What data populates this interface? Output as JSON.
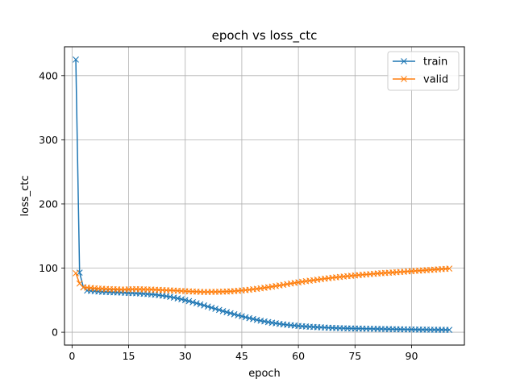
{
  "chart_data": {
    "type": "line",
    "title": "epoch vs loss_ctc",
    "xlabel": "epoch",
    "ylabel": "loss_ctc",
    "xlim": [
      -2,
      104
    ],
    "ylim": [
      -20,
      445
    ],
    "xticks": [
      0,
      15,
      30,
      45,
      60,
      75,
      90
    ],
    "yticks": [
      0,
      100,
      200,
      300,
      400
    ],
    "grid": true,
    "legend_position": "top-right",
    "marker": "x",
    "x": [
      1,
      2,
      3,
      4,
      5,
      6,
      7,
      8,
      9,
      10,
      11,
      12,
      13,
      14,
      15,
      16,
      17,
      18,
      19,
      20,
      21,
      22,
      23,
      24,
      25,
      26,
      27,
      28,
      29,
      30,
      31,
      32,
      33,
      34,
      35,
      36,
      37,
      38,
      39,
      40,
      41,
      42,
      43,
      44,
      45,
      46,
      47,
      48,
      49,
      50,
      51,
      52,
      53,
      54,
      55,
      56,
      57,
      58,
      59,
      60,
      61,
      62,
      63,
      64,
      65,
      66,
      67,
      68,
      69,
      70,
      71,
      72,
      73,
      74,
      75,
      76,
      77,
      78,
      79,
      80,
      81,
      82,
      83,
      84,
      85,
      86,
      87,
      88,
      89,
      90,
      91,
      92,
      93,
      94,
      95,
      96,
      97,
      98,
      99,
      100
    ],
    "series": [
      {
        "name": "train",
        "color": "#1f77b4",
        "values": [
          425.0,
          93.0,
          70.0,
          65.0,
          64.5,
          64.0,
          63.5,
          63.0,
          62.8,
          62.5,
          62.2,
          62.0,
          61.8,
          61.5,
          61.2,
          61.0,
          60.8,
          60.5,
          60.0,
          59.5,
          59.0,
          58.5,
          57.8,
          57.0,
          56.2,
          55.2,
          54.0,
          52.8,
          51.5,
          50.0,
          48.5,
          46.8,
          45.2,
          43.5,
          41.8,
          40.0,
          38.3,
          36.5,
          34.8,
          33.0,
          31.3,
          29.6,
          28.0,
          26.4,
          24.9,
          23.4,
          22.0,
          20.6,
          19.3,
          18.0,
          16.9,
          15.8,
          14.8,
          13.9,
          13.0,
          12.3,
          11.6,
          11.0,
          10.4,
          9.9,
          9.4,
          9.0,
          8.6,
          8.2,
          7.9,
          7.6,
          7.3,
          7.0,
          6.8,
          6.6,
          6.4,
          6.2,
          6.0,
          5.9,
          5.8,
          5.7,
          5.6,
          5.5,
          5.4,
          5.3,
          5.2,
          5.1,
          5.0,
          4.9,
          4.8,
          4.7,
          4.6,
          4.5,
          4.4,
          4.3,
          4.2,
          4.1,
          4.0,
          4.0,
          3.9,
          3.9,
          3.8,
          3.8,
          3.7,
          3.7
        ]
      },
      {
        "name": "valid",
        "color": "#ff7f0e",
        "values": [
          92.0,
          76.0,
          70.0,
          69.5,
          69.0,
          68.5,
          68.0,
          67.8,
          67.5,
          67.2,
          67.0,
          66.8,
          66.5,
          66.6,
          66.8,
          67.0,
          67.2,
          67.0,
          66.8,
          66.6,
          66.5,
          66.3,
          66.0,
          65.8,
          65.5,
          65.3,
          65.0,
          64.7,
          64.4,
          64.0,
          63.7,
          63.4,
          63.2,
          63.0,
          62.8,
          62.8,
          62.9,
          63.0,
          63.1,
          63.3,
          63.5,
          63.8,
          64.2,
          64.6,
          65.1,
          65.7,
          66.3,
          67.0,
          67.7,
          68.5,
          69.3,
          70.2,
          71.1,
          72.0,
          73.0,
          74.0,
          75.0,
          76.0,
          76.9,
          77.8,
          78.7,
          79.6,
          80.4,
          81.2,
          82.0,
          82.8,
          83.5,
          84.2,
          84.9,
          85.6,
          86.2,
          86.8,
          87.4,
          88.0,
          88.6,
          89.1,
          89.6,
          90.1,
          90.6,
          91.1,
          91.6,
          92.0,
          92.4,
          92.8,
          93.2,
          93.6,
          94.0,
          94.4,
          94.8,
          95.2,
          95.6,
          96.0,
          96.4,
          96.8,
          97.2,
          97.6,
          98.0,
          98.4,
          98.8,
          99.2
        ]
      }
    ]
  }
}
